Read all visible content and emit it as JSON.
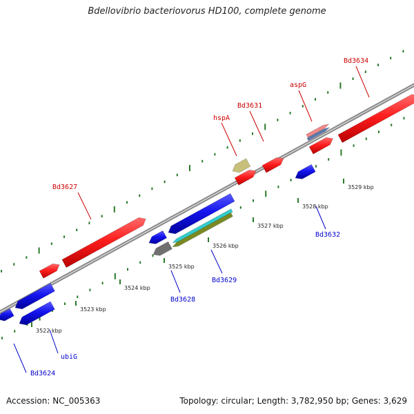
{
  "title": "Bdellovibrio bacteriovorus HD100, complete genome",
  "footer": {
    "accession": "Accession: NC_005363",
    "summary": "Topology: circular; Length: 3,782,950 bp; Genes: 3,629"
  },
  "colors": {
    "forward": "#ff2222",
    "reverse": "#1a1aee",
    "backbone": "#8c8c8c",
    "tick": "#2a7a2a",
    "label_forward": "#cc0000",
    "label_reverse": "#0000cc",
    "khaki": "#c8c07a",
    "gray": "#707070",
    "cyan": "#33cccc",
    "olive": "#7a8a22",
    "pink": "#f08888",
    "steel": "#5a7ab0"
  },
  "axis_ticks": [
    {
      "label": "3522 kbp"
    },
    {
      "label": "3523 kbp"
    },
    {
      "label": "3524 kbp"
    },
    {
      "label": "3525 kbp"
    },
    {
      "label": "3526 kbp"
    },
    {
      "label": "3527 kbp"
    },
    {
      "label": "3528 kbp"
    },
    {
      "label": "3529 kbp"
    }
  ],
  "genes": [
    {
      "name": "Bd3624",
      "strand": "reverse"
    },
    {
      "name": "ubiG",
      "strand": "reverse"
    },
    {
      "name": "Bd3627",
      "strand": "forward"
    },
    {
      "name": "Bd3628",
      "strand": "reverse"
    },
    {
      "name": "Bd3629",
      "strand": "reverse"
    },
    {
      "name": "hspA",
      "strand": "forward"
    },
    {
      "name": "Bd3631",
      "strand": "forward"
    },
    {
      "name": "Bd3632",
      "strand": "reverse"
    },
    {
      "name": "aspG",
      "strand": "forward"
    },
    {
      "name": "Bd3634",
      "strand": "forward"
    }
  ]
}
